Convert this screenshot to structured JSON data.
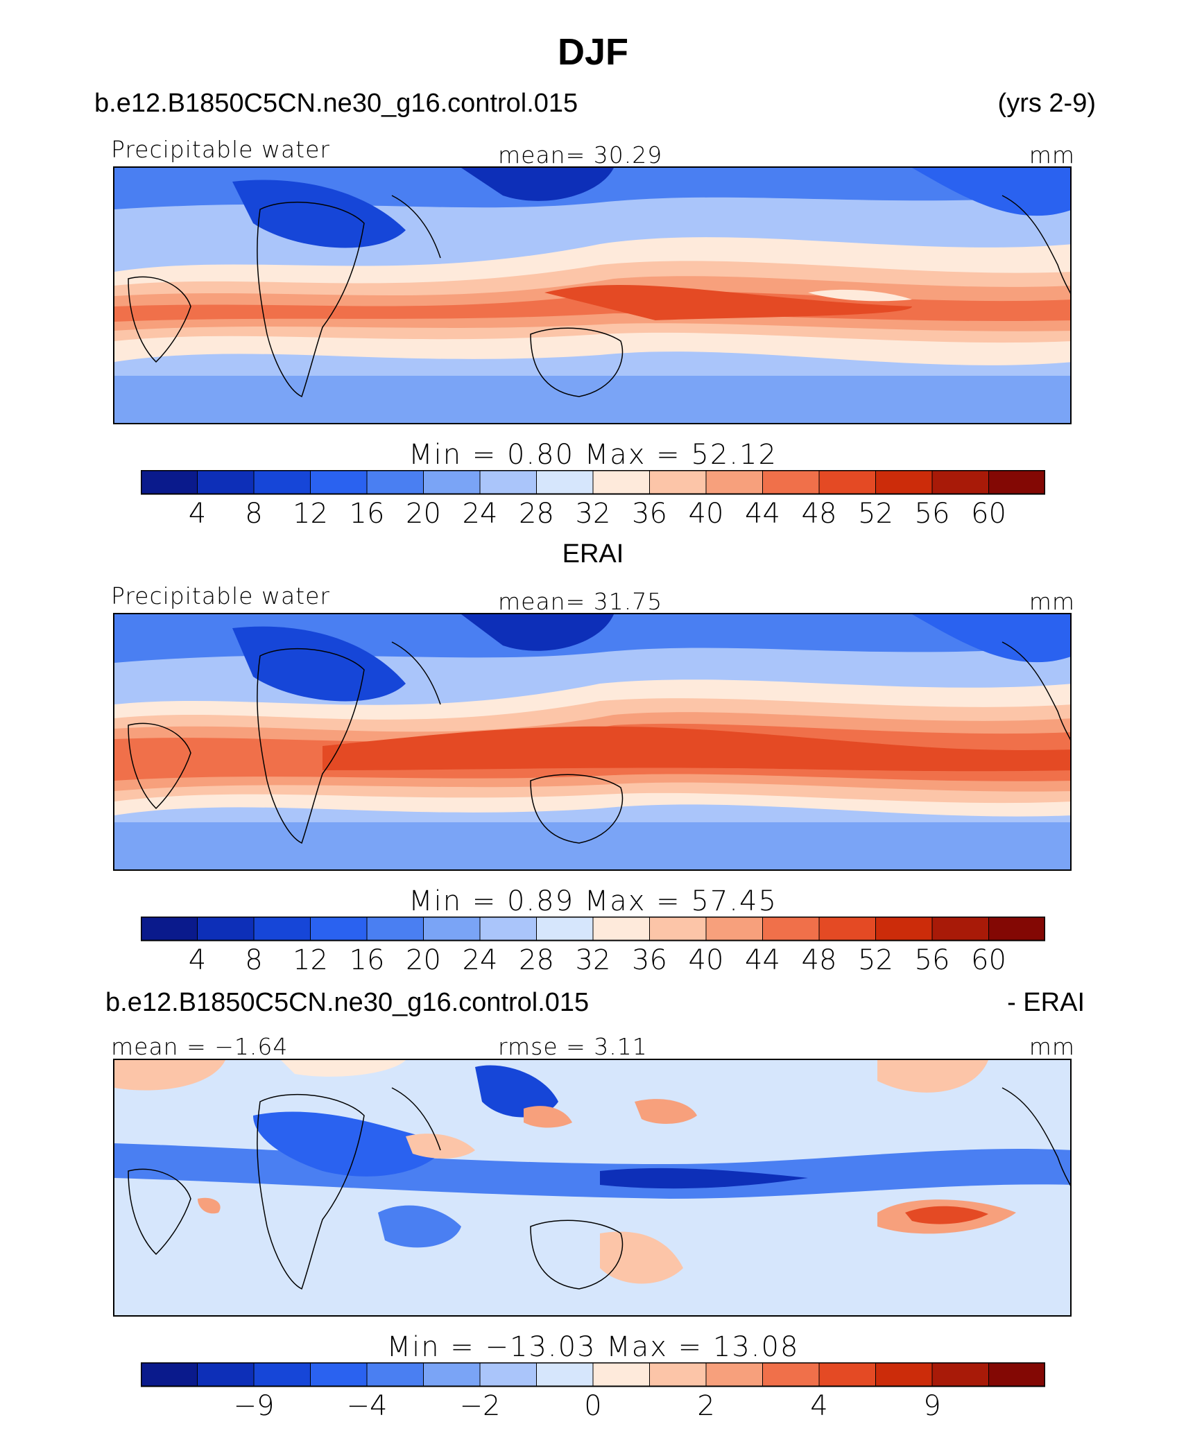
{
  "figure": {
    "title": "DJF"
  },
  "panels": [
    {
      "header_left": "b.e12.B1850C5CN.ne30_g16.control.015",
      "header_right": "(yrs 2-9)",
      "sub_left": "Precipitable  water",
      "sub_center": "mean=   30.29",
      "sub_right": "mm",
      "minmax": "Min  =     0.80  Max  =    52.12",
      "colorbar": "abs"
    },
    {
      "header_center": "ERAI",
      "sub_left": "Precipitable  water",
      "sub_center": "mean=   31.75",
      "sub_right": "mm",
      "minmax": "Min  =     0.89  Max  =    57.45",
      "colorbar": "abs"
    },
    {
      "header_left": "b.e12.B1850C5CN.ne30_g16.control.015",
      "header_right": "- ERAI",
      "sub_left": "mean  =   −1.64",
      "sub_center": "rmse  =      3.11",
      "sub_right": "mm",
      "minmax": "Min  =  −13.03  Max  =    13.08",
      "colorbar": "diff"
    }
  ],
  "chart_data": [
    {
      "type": "heatmap",
      "title": "b.e12.B1850C5CN.ne30_g16.control.015 (yrs 2-9)",
      "variable": "Precipitable water",
      "units": "mm",
      "season": "DJF",
      "mean": 30.29,
      "min": 0.8,
      "max": 52.12,
      "colorbar_levels": [
        4,
        8,
        12,
        16,
        20,
        24,
        28,
        32,
        36,
        40,
        44,
        48,
        52,
        56,
        60
      ]
    },
    {
      "type": "heatmap",
      "title": "ERAI",
      "variable": "Precipitable water",
      "units": "mm",
      "season": "DJF",
      "mean": 31.75,
      "min": 0.89,
      "max": 57.45,
      "colorbar_levels": [
        4,
        8,
        12,
        16,
        20,
        24,
        28,
        32,
        36,
        40,
        44,
        48,
        52,
        56,
        60
      ]
    },
    {
      "type": "heatmap",
      "title": "b.e12.B1850C5CN.ne30_g16.control.015 - ERAI",
      "units": "mm",
      "season": "DJF",
      "mean": -1.64,
      "rmse": 3.11,
      "min": -13.03,
      "max": 13.08,
      "colorbar_levels": [
        -9,
        -4,
        -2,
        0,
        2,
        4,
        9
      ]
    }
  ],
  "colorbars": {
    "abs": {
      "colors": [
        "#0a1a8c",
        "#0d2fb8",
        "#1646d8",
        "#2a62f0",
        "#4a7ff2",
        "#7aa4f6",
        "#aac5fa",
        "#d6e6fc",
        "#feeadb",
        "#fcc5a8",
        "#f7a07c",
        "#f0704a",
        "#e44a24",
        "#cc2c0a",
        "#a81a08",
        "#830804"
      ],
      "tick_labels": [
        "4",
        "8",
        "12",
        "16",
        "20",
        "24",
        "28",
        "32",
        "36",
        "40",
        "44",
        "48",
        "52",
        "56",
        "60"
      ]
    },
    "diff": {
      "colors": [
        "#0a1a8c",
        "#0d2fb8",
        "#1646d8",
        "#2a62f0",
        "#4a7ff2",
        "#7aa4f6",
        "#aac5fa",
        "#d6e6fc",
        "#feeadb",
        "#fcc5a8",
        "#f7a07c",
        "#f0704a",
        "#e44a24",
        "#cc2c0a",
        "#a81a08",
        "#830804"
      ],
      "tick_labels": [
        "−9",
        "",
        "−4",
        "",
        "−2",
        "",
        "0",
        "",
        "2",
        "",
        "4",
        "",
        "9",
        ""
      ],
      "tick_label_slots": [
        1,
        3,
        5,
        7,
        9,
        11,
        13
      ]
    }
  }
}
